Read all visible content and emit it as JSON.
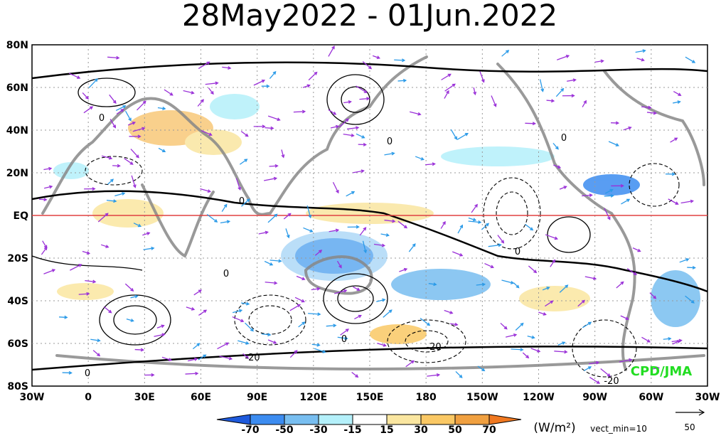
{
  "title": "28May2022 - 01Jun.2022",
  "map": {
    "lat_labels": [
      "80N",
      "60N",
      "40N",
      "20N",
      "EQ",
      "20S",
      "40S",
      "60S",
      "80S"
    ],
    "lon_labels": [
      "30W",
      "0",
      "30E",
      "60E",
      "90E",
      "120E",
      "150E",
      "180",
      "150W",
      "120W",
      "90W",
      "60W",
      "30W"
    ]
  },
  "contour_labels": [
    "0",
    "0",
    "0",
    "0",
    "0",
    "0",
    "0",
    "0",
    "-20",
    "-20",
    "-20"
  ],
  "credit": "CPD/JMA",
  "colorbar": {
    "labels": [
      -70,
      -50,
      -30,
      -15,
      15,
      30,
      50,
      70
    ],
    "units": "(W/m²)"
  },
  "vector_note": "vect_min=10",
  "reference_vector": "50"
}
